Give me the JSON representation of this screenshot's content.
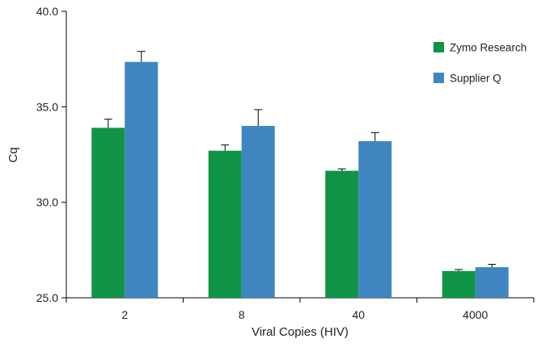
{
  "chart_data": {
    "type": "bar",
    "xlabel": "Viral Copies (HIV)",
    "ylabel": "Cq",
    "categories": [
      "2",
      "8",
      "40",
      "4000"
    ],
    "ylim": [
      25.0,
      40.0
    ],
    "yticks": [
      "25.0",
      "30.0",
      "35.0",
      "40.0"
    ],
    "grid": false,
    "legend_position": "top-right",
    "series": [
      {
        "name": "Zymo Research",
        "color": "#0f9447",
        "values": [
          33.9,
          32.7,
          31.65,
          26.4
        ],
        "errors": [
          0.45,
          0.3,
          0.1,
          0.08
        ]
      },
      {
        "name": "Supplier Q",
        "color": "#3f86c0",
        "values": [
          37.35,
          34.0,
          33.2,
          26.6
        ],
        "errors": [
          0.55,
          0.85,
          0.45,
          0.15
        ]
      }
    ]
  }
}
